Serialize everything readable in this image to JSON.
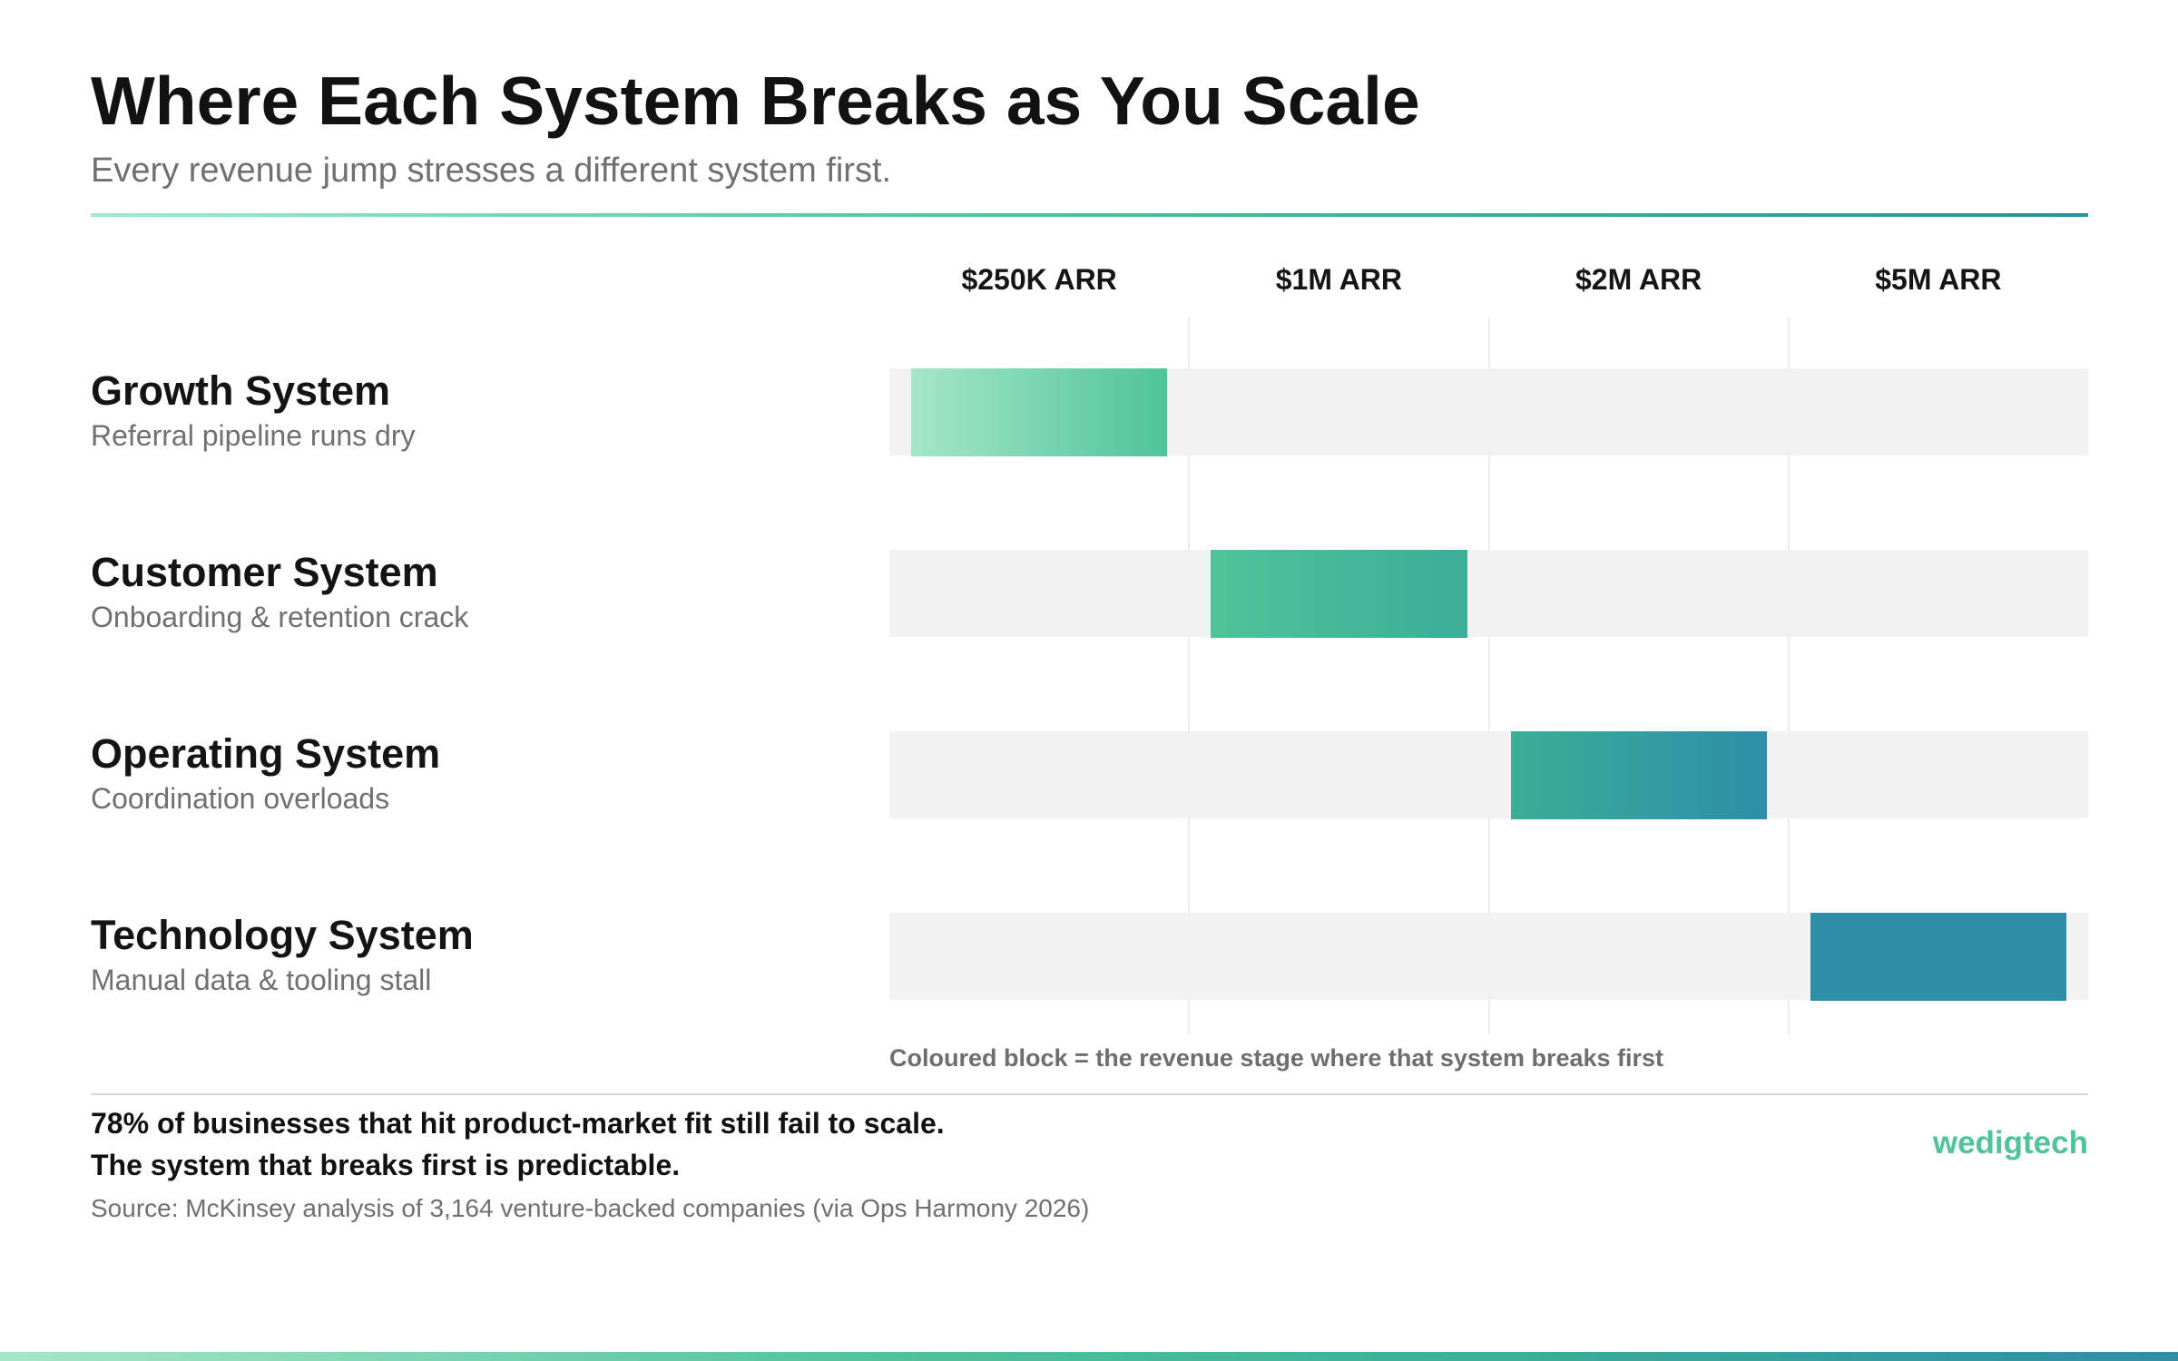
{
  "header": {
    "title": "Where Each System Breaks as You Scale",
    "subtitle": "Every revenue jump stresses a different system first."
  },
  "chart_data": {
    "type": "table",
    "stages": [
      "$250K ARR",
      "$1M ARR",
      "$2M ARR",
      "$5M ARR"
    ],
    "rows": [
      {
        "name": "Growth System",
        "description": "Referral pipeline runs dry",
        "breaks_at": "$250K ARR"
      },
      {
        "name": "Customer System",
        "description": "Onboarding & retention crack",
        "breaks_at": "$1M ARR"
      },
      {
        "name": "Operating System",
        "description": "Coordination overloads",
        "breaks_at": "$2M ARR"
      },
      {
        "name": "Technology System",
        "description": "Manual data & tooling stall",
        "breaks_at": "$5M ARR"
      }
    ],
    "legend": "Coloured block = the revenue stage where that system breaks first",
    "colors": {
      "gradient_stops": [
        "#a5e6c9",
        "#4fc49a",
        "#3aae97",
        "#2e8ea8"
      ],
      "track": "#f2f2f2",
      "grid": "#ececec"
    }
  },
  "footer": {
    "stat_line_1": "78% of businesses that hit product-market fit still fail to scale.",
    "stat_line_2": "The system that breaks first is predictable.",
    "source": "Source: McKinsey analysis of 3,164 venture-backed companies (via Ops Harmony 2026)",
    "brand": "wedigtech"
  }
}
